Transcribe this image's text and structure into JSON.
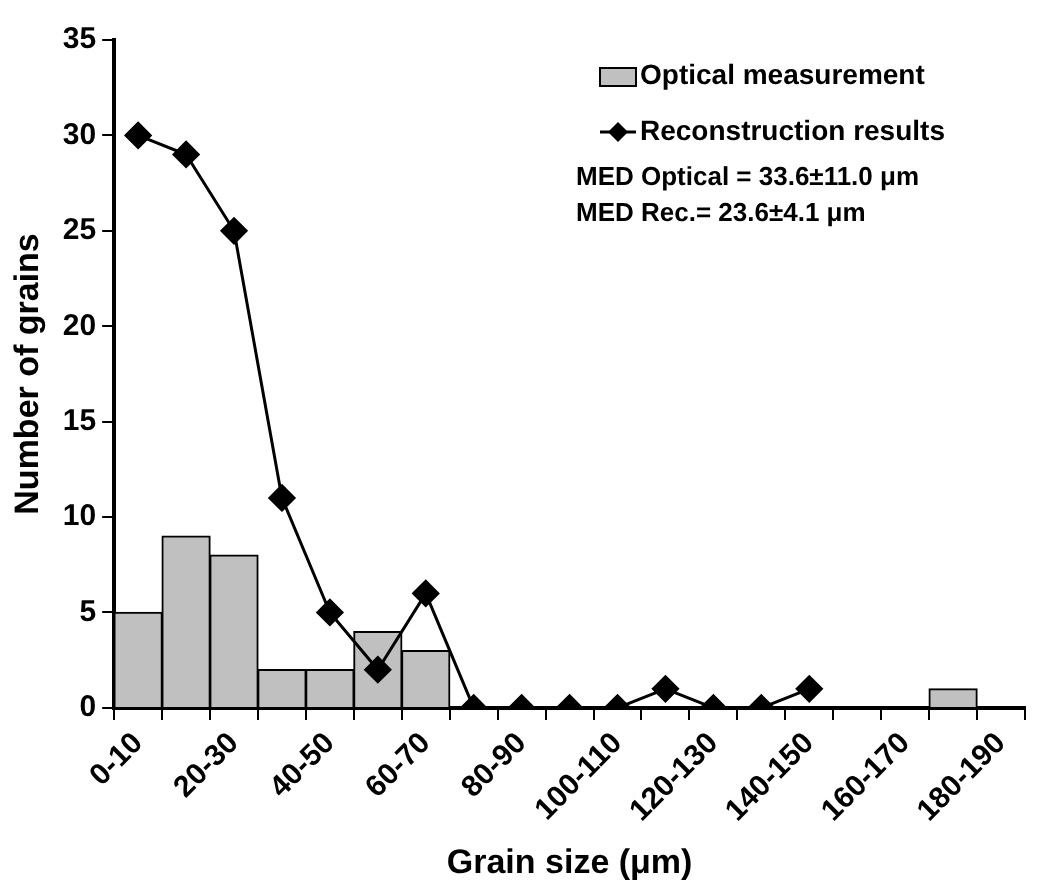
{
  "chart_data": {
    "type": "bar",
    "xlabel": "Grain size (μm)",
    "ylabel": "Number of grains",
    "categories": [
      "0-10",
      null,
      "20-30",
      null,
      "40-50",
      null,
      "60-70",
      null,
      "80-90",
      null,
      "100-110",
      null,
      "120-130",
      null,
      "140-150",
      null,
      "160-170",
      null,
      "180-190"
    ],
    "series": [
      {
        "name": "Optical measurement",
        "color": "#c0c0c0",
        "values": [
          5,
          9,
          8,
          2,
          2,
          4,
          3,
          0,
          0,
          0,
          0,
          0,
          0,
          0,
          0,
          0,
          0,
          1,
          0
        ]
      },
      {
        "name": "Reconstruction results",
        "type": "line",
        "color": "#000000",
        "values": [
          30,
          29,
          25,
          11,
          5,
          2,
          6,
          0,
          0,
          0,
          0,
          1,
          0,
          0,
          1,
          null,
          null,
          null,
          null
        ]
      }
    ],
    "ylim": [
      0,
      35
    ],
    "yticks": [
      0,
      5,
      10,
      15,
      20,
      25,
      30,
      35
    ],
    "grid": false,
    "legend": "top right",
    "marker": "diamond",
    "line_style": "solid",
    "annotations": [
      "MED Optical = 33.6±11.0 μm",
      "MED Rec.= 23.6±4.1 μm"
    ]
  }
}
